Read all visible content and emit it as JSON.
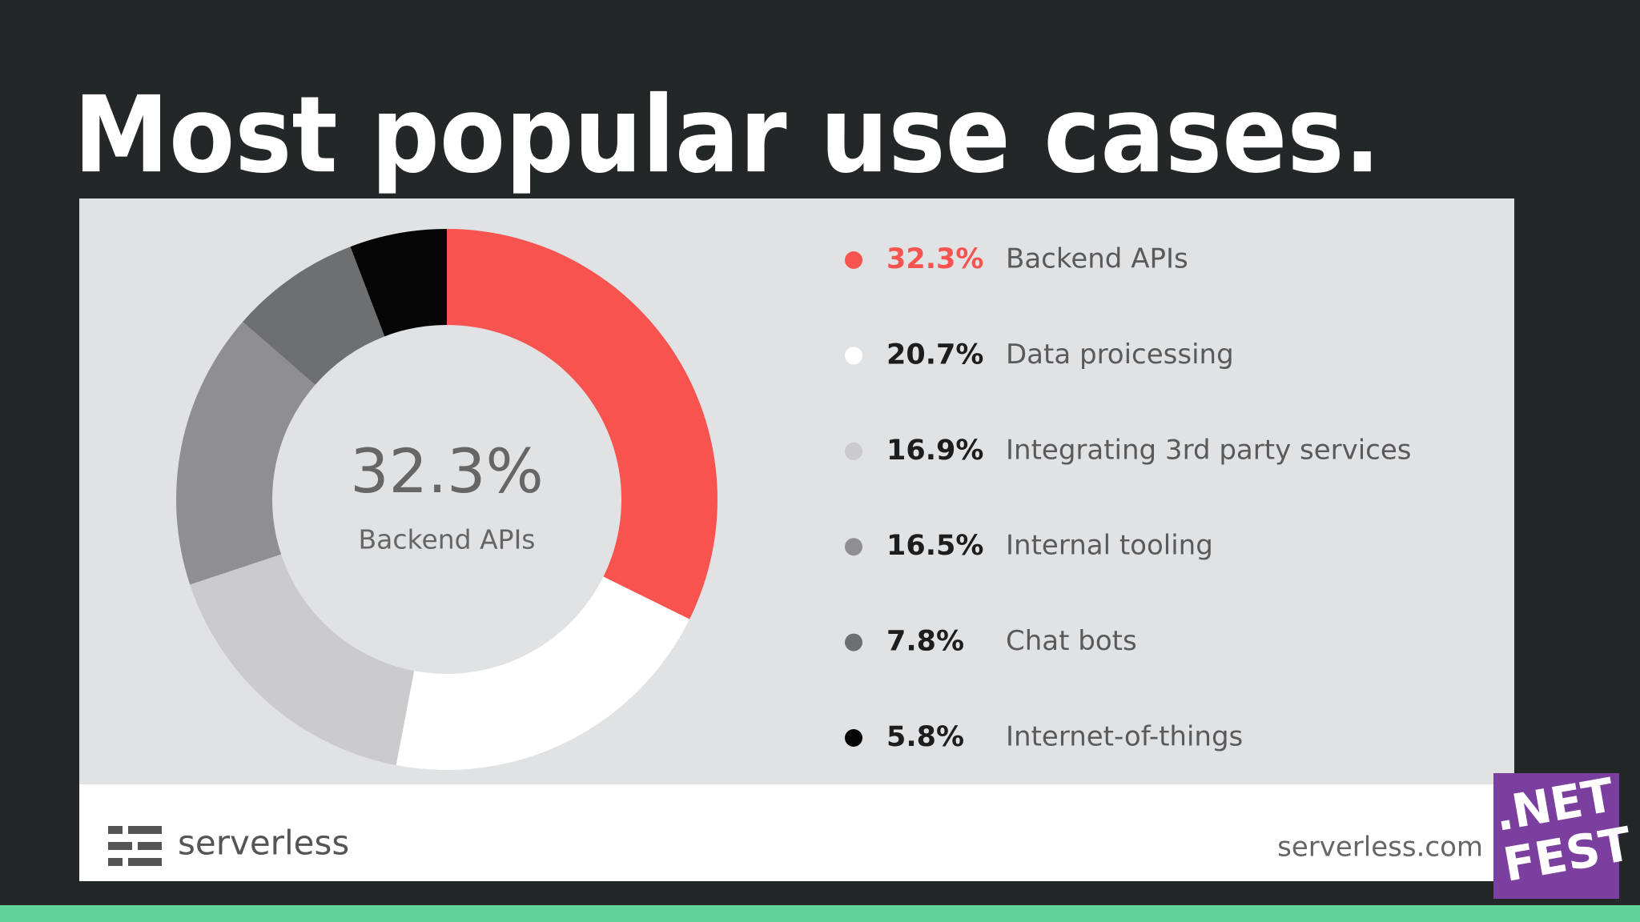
{
  "slide": {
    "title": "Most popular use cases."
  },
  "chart_data": {
    "type": "donut",
    "categories": [
      "Backend APIs",
      "Data proicessing",
      "Integrating 3rd party services",
      "Internal tooling",
      "Chat bots",
      "Internet-of-things"
    ],
    "values": [
      32.3,
      20.7,
      16.9,
      16.5,
      7.8,
      5.8
    ],
    "value_labels": [
      "32.3%",
      "20.7%",
      "16.9%",
      "16.5%",
      "7.8%",
      "5.8%"
    ],
    "colors": [
      "#f8544f",
      "#ffffff",
      "#cbcbcd",
      "#8f8f91",
      "#6e6f71",
      "#050505"
    ]
  },
  "footer": {
    "brand": "serverless",
    "url": "serverless.com"
  },
  "badge": {
    "line1": ".NET",
    "line2": "FEST"
  }
}
